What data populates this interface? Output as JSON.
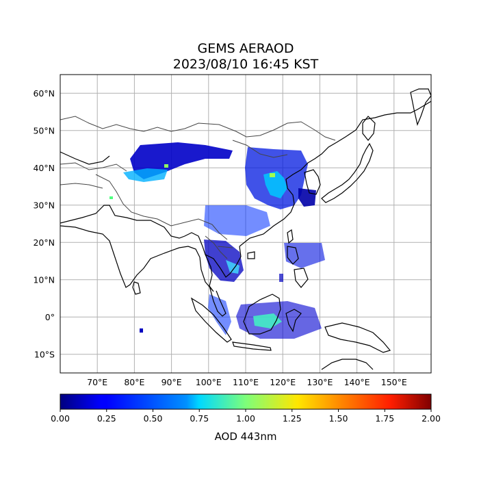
{
  "title": {
    "line1": "GEMS AERAOD",
    "line2": "2023/08/10 16:45 KST"
  },
  "map": {
    "lon_range": [
      60,
      160
    ],
    "lat_range": [
      -15,
      65
    ],
    "lon_ticks": [
      "70°E",
      "80°E",
      "90°E",
      "100°E",
      "110°E",
      "120°E",
      "130°E",
      "140°E",
      "150°E"
    ],
    "lat_ticks": [
      "60°N",
      "50°N",
      "40°N",
      "30°N",
      "20°N",
      "10°N",
      "0°",
      "10°S"
    ],
    "grid": true
  },
  "colorbar": {
    "label": "AOD 443nm",
    "ticks": [
      "0.00",
      "0.25",
      "0.50",
      "0.75",
      "1.00",
      "1.25",
      "1.50",
      "1.75",
      "2.00"
    ],
    "range": [
      0,
      2
    ],
    "colormap": "jet"
  }
}
